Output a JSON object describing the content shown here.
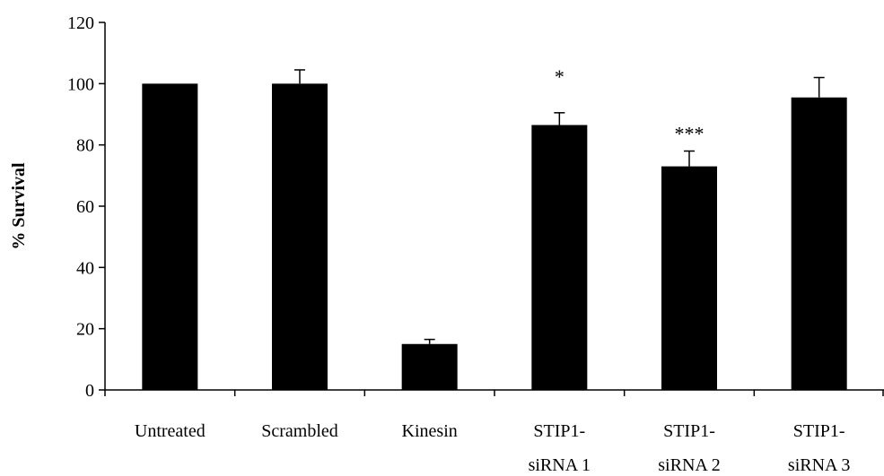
{
  "chart_data": {
    "type": "bar",
    "title": "",
    "xlabel": "",
    "ylabel": "% Survival",
    "ylim": [
      0,
      120
    ],
    "yticks": [
      0,
      20,
      40,
      60,
      80,
      100,
      120
    ],
    "grid": false,
    "categories": [
      [
        "Untreated"
      ],
      [
        "Scrambled"
      ],
      [
        "Kinesin"
      ],
      [
        "STIP1-",
        "siRNA 1"
      ],
      [
        "STIP1-",
        "siRNA 2"
      ],
      [
        "STIP1-",
        "siRNA 3"
      ]
    ],
    "values": [
      100,
      100,
      15,
      86.5,
      73,
      95.5
    ],
    "errors": [
      0,
      4.5,
      1.5,
      4,
      5,
      6.5
    ],
    "annotations": [
      "",
      "",
      "",
      "*",
      "***",
      ""
    ],
    "bar_color": "#000000"
  }
}
